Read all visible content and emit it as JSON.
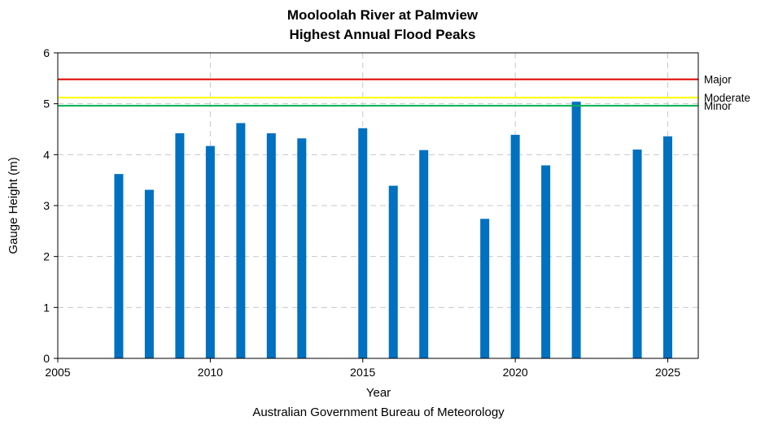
{
  "chart_data": {
    "type": "bar",
    "title": "Mooloolah River at Palmview",
    "subtitle": "Highest Annual Flood Peaks",
    "xlabel": "Year",
    "ylabel": "Gauge Height (m)",
    "source": "Australian Government Bureau of Meteorology",
    "xlim": [
      2005,
      2026
    ],
    "ylim": [
      0,
      6
    ],
    "x_ticks": [
      2005,
      2010,
      2015,
      2020,
      2025
    ],
    "y_ticks": [
      0,
      1,
      2,
      3,
      4,
      5,
      6
    ],
    "grid": true,
    "bar_color": "#0070c0",
    "points": [
      {
        "x": 2007,
        "y": 3.62
      },
      {
        "x": 2008,
        "y": 3.31
      },
      {
        "x": 2009,
        "y": 4.42
      },
      {
        "x": 2010,
        "y": 4.17
      },
      {
        "x": 2011,
        "y": 4.62
      },
      {
        "x": 2012,
        "y": 4.42
      },
      {
        "x": 2013,
        "y": 4.32
      },
      {
        "x": 2015,
        "y": 4.52
      },
      {
        "x": 2016,
        "y": 3.39
      },
      {
        "x": 2017,
        "y": 4.09
      },
      {
        "x": 2019,
        "y": 2.74
      },
      {
        "x": 2020,
        "y": 4.39
      },
      {
        "x": 2021,
        "y": 3.79
      },
      {
        "x": 2022,
        "y": 5.04
      },
      {
        "x": 2024,
        "y": 4.1
      },
      {
        "x": 2025,
        "y": 4.36
      }
    ],
    "thresholds": [
      {
        "label": "Major",
        "value": 5.48,
        "color": "#e00000"
      },
      {
        "label": "Moderate",
        "value": 5.12,
        "color": "#ffff00"
      },
      {
        "label": "Minor",
        "value": 4.96,
        "color": "#00b050"
      }
    ]
  }
}
